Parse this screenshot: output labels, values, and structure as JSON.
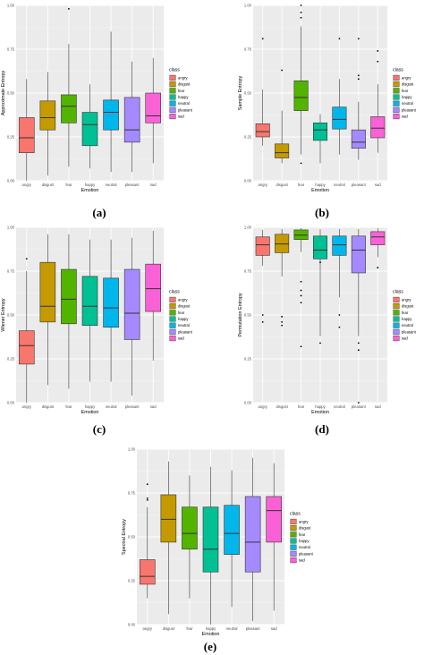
{
  "chart_data": [
    {
      "type": "box",
      "caption": "(a)",
      "ylabel": "Approximate Entropy",
      "xlabel": "Emotion",
      "ylim": [
        0,
        1
      ],
      "yticks": [
        "0.00",
        "0.25",
        "0.50",
        "0.75",
        "1.00"
      ],
      "categories": [
        "angry",
        "disgust",
        "fear",
        "happy",
        "neutral",
        "pleasant",
        "sad"
      ],
      "legend": {
        "title": "class",
        "placement": "right"
      },
      "boxes": [
        {
          "min": 0.0,
          "q1": 0.16,
          "median": 0.245,
          "q3": 0.36,
          "max": 0.58,
          "outliers": []
        },
        {
          "min": 0.03,
          "q1": 0.29,
          "median": 0.36,
          "q3": 0.455,
          "max": 0.62,
          "outliers": []
        },
        {
          "min": 0.08,
          "q1": 0.33,
          "median": 0.425,
          "q3": 0.49,
          "max": 0.78,
          "outliers": [
            0.98
          ]
        },
        {
          "min": 0.07,
          "q1": 0.2,
          "median": 0.32,
          "q3": 0.39,
          "max": 0.55,
          "outliers": []
        },
        {
          "min": 0.05,
          "q1": 0.29,
          "median": 0.39,
          "q3": 0.46,
          "max": 0.85,
          "outliers": []
        },
        {
          "min": 0.05,
          "q1": 0.22,
          "median": 0.29,
          "q3": 0.475,
          "max": 0.68,
          "outliers": []
        },
        {
          "min": 0.1,
          "q1": 0.33,
          "median": 0.37,
          "q3": 0.5,
          "max": 0.7,
          "outliers": []
        }
      ]
    },
    {
      "type": "box",
      "caption": "(b)",
      "ylabel": "Sample Entropy",
      "xlabel": "Emotion",
      "ylim": [
        0,
        1
      ],
      "yticks": [
        "0.00",
        "0.25",
        "0.50",
        "0.75",
        "1.00"
      ],
      "categories": [
        "angry",
        "disgust",
        "fear",
        "happy",
        "neutral",
        "pleasant",
        "sad"
      ],
      "legend": {
        "title": "class",
        "placement": "right"
      },
      "boxes": [
        {
          "min": 0.2,
          "q1": 0.25,
          "median": 0.28,
          "q3": 0.325,
          "max": 0.52,
          "outliers": [
            0.81
          ]
        },
        {
          "min": 0.1,
          "q1": 0.13,
          "median": 0.16,
          "q3": 0.21,
          "max": 0.4,
          "outliers": [
            0.63
          ]
        },
        {
          "min": 0.15,
          "q1": 0.4,
          "median": 0.475,
          "q3": 0.57,
          "max": 0.88,
          "outliers": [
            0.1,
            0.93,
            0.96,
            1.0
          ]
        },
        {
          "min": 0.1,
          "q1": 0.23,
          "median": 0.29,
          "q3": 0.33,
          "max": 0.38,
          "outliers": []
        },
        {
          "min": 0.15,
          "q1": 0.295,
          "median": 0.35,
          "q3": 0.42,
          "max": 0.58,
          "outliers": [
            0.81
          ]
        },
        {
          "min": 0.12,
          "q1": 0.185,
          "median": 0.22,
          "q3": 0.29,
          "max": 0.45,
          "outliers": [
            0.58,
            0.6,
            0.81
          ]
        },
        {
          "min": 0.16,
          "q1": 0.245,
          "median": 0.3,
          "q3": 0.365,
          "max": 0.55,
          "outliers": [
            0.68,
            0.74
          ]
        }
      ]
    },
    {
      "type": "box",
      "caption": "(c)",
      "ylabel": "Wiener Entropy",
      "xlabel": "Emotion",
      "ylim": [
        0,
        1
      ],
      "yticks": [
        "0.00",
        "0.25",
        "0.50",
        "0.75",
        "1.00"
      ],
      "categories": [
        "angry",
        "disgust",
        "fear",
        "happy",
        "neutral",
        "pleasant",
        "sad"
      ],
      "legend": {
        "title": "class",
        "placement": "right"
      },
      "boxes": [
        {
          "min": 0.0,
          "q1": 0.22,
          "median": 0.325,
          "q3": 0.41,
          "max": 0.75,
          "outliers": [
            0.82
          ]
        },
        {
          "min": 0.1,
          "q1": 0.46,
          "median": 0.55,
          "q3": 0.8,
          "max": 0.96,
          "outliers": []
        },
        {
          "min": 0.08,
          "q1": 0.45,
          "median": 0.59,
          "q3": 0.76,
          "max": 0.96,
          "outliers": []
        },
        {
          "min": 0.12,
          "q1": 0.44,
          "median": 0.55,
          "q3": 0.72,
          "max": 0.93,
          "outliers": []
        },
        {
          "min": 0.12,
          "q1": 0.43,
          "median": 0.54,
          "q3": 0.71,
          "max": 0.93,
          "outliers": []
        },
        {
          "min": 0.04,
          "q1": 0.36,
          "median": 0.51,
          "q3": 0.76,
          "max": 0.94,
          "outliers": []
        },
        {
          "min": 0.24,
          "q1": 0.52,
          "median": 0.65,
          "q3": 0.79,
          "max": 0.98,
          "outliers": []
        }
      ]
    },
    {
      "type": "box",
      "caption": "(d)",
      "ylabel": "Permutation Entropy",
      "xlabel": "Emotion",
      "ylim": [
        0,
        1
      ],
      "yticks": [
        "0.00",
        "0.25",
        "0.50",
        "0.75",
        "1.00"
      ],
      "categories": [
        "angry",
        "disgust",
        "fear",
        "happy",
        "neutral",
        "pleasant",
        "sad"
      ],
      "legend": {
        "title": "class",
        "placement": "right"
      },
      "boxes": [
        {
          "min": 0.78,
          "q1": 0.84,
          "median": 0.9,
          "q3": 0.945,
          "max": 0.985,
          "outliers": [
            0.46,
            0.5
          ]
        },
        {
          "min": 0.72,
          "q1": 0.855,
          "median": 0.905,
          "q3": 0.96,
          "max": 0.99,
          "outliers": [
            0.44,
            0.46,
            0.49
          ]
        },
        {
          "min": 0.86,
          "q1": 0.93,
          "median": 0.955,
          "q3": 0.985,
          "max": 0.995,
          "outliers": [
            0.32,
            0.57,
            0.61,
            0.64,
            0.69
          ]
        },
        {
          "min": 0.38,
          "q1": 0.82,
          "median": 0.87,
          "q3": 0.95,
          "max": 0.99,
          "outliers": [
            0.34,
            0.8
          ]
        },
        {
          "min": 0.6,
          "q1": 0.84,
          "median": 0.9,
          "q3": 0.95,
          "max": 0.99,
          "outliers": [
            0.43,
            0.5
          ]
        },
        {
          "min": 0.38,
          "q1": 0.74,
          "median": 0.87,
          "q3": 0.95,
          "max": 0.99,
          "outliers": [
            0.0,
            0.3,
            0.34
          ]
        },
        {
          "min": 0.83,
          "q1": 0.9,
          "median": 0.945,
          "q3": 0.975,
          "max": 0.995,
          "outliers": [
            0.77
          ]
        }
      ]
    },
    {
      "type": "box",
      "caption": "(e)",
      "ylabel": "Spectral Entropy",
      "xlabel": "Emotion",
      "ylim": [
        0,
        1
      ],
      "yticks": [
        "0.00",
        "0.25",
        "0.50",
        "0.75",
        "1.00"
      ],
      "categories": [
        "angry",
        "disgust",
        "fear",
        "happy",
        "neutral",
        "pleasant",
        "sad"
      ],
      "legend": {
        "title": "class",
        "placement": "right"
      },
      "boxes": [
        {
          "min": 0.15,
          "q1": 0.23,
          "median": 0.275,
          "q3": 0.37,
          "max": 0.67,
          "outliers": [
            0.71,
            0.72,
            0.8
          ]
        },
        {
          "min": 0.06,
          "q1": 0.47,
          "median": 0.6,
          "q3": 0.74,
          "max": 0.93,
          "outliers": []
        },
        {
          "min": 0.15,
          "q1": 0.43,
          "median": 0.52,
          "q3": 0.67,
          "max": 0.85,
          "outliers": []
        },
        {
          "min": 0.0,
          "q1": 0.3,
          "median": 0.43,
          "q3": 0.67,
          "max": 0.9,
          "outliers": []
        },
        {
          "min": 0.1,
          "q1": 0.4,
          "median": 0.52,
          "q3": 0.68,
          "max": 0.88,
          "outliers": []
        },
        {
          "min": 0.02,
          "q1": 0.3,
          "median": 0.47,
          "q3": 0.73,
          "max": 0.95,
          "outliers": []
        },
        {
          "min": 0.08,
          "q1": 0.47,
          "median": 0.65,
          "q3": 0.73,
          "max": 0.92,
          "outliers": []
        }
      ]
    }
  ],
  "palette": {
    "angry": "#F8766D",
    "disgust": "#C49A00",
    "fear": "#53B400",
    "happy": "#00C094",
    "neutral": "#00B6EB",
    "pleasant": "#A58AFF",
    "sad": "#FB61D7"
  }
}
